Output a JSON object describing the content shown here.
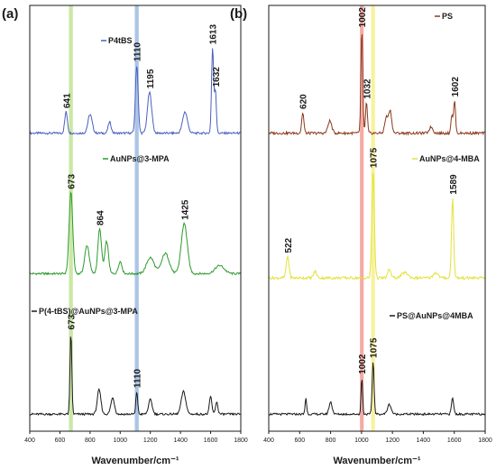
{
  "chart_data": [
    {
      "type": "line",
      "panel_label": "(a)",
      "xlabel": "Wavenumber/cm⁻¹",
      "xlim": [
        400,
        1800
      ],
      "xticks": [
        400,
        600,
        800,
        1000,
        1200,
        1400,
        1600,
        1800
      ],
      "highlight_bands": [
        {
          "center": 673,
          "width": 26,
          "color": "#b9df8a"
        },
        {
          "center": 1110,
          "width": 26,
          "color": "#8fb1de"
        }
      ],
      "series": [
        {
          "name": "P4tBS",
          "color": "#4a5fc1",
          "baseline": 0.7,
          "scale": 0.2,
          "peaks": [
            {
              "x": 641,
              "h": 0.25,
              "w": 9,
              "label": "641"
            },
            {
              "x": 800,
              "h": 0.22,
              "w": 14
            },
            {
              "x": 930,
              "h": 0.13,
              "w": 10
            },
            {
              "x": 1110,
              "h": 0.8,
              "w": 9,
              "label": "1110"
            },
            {
              "x": 1195,
              "h": 0.48,
              "w": 14,
              "label": "1195"
            },
            {
              "x": 1430,
              "h": 0.25,
              "w": 16
            },
            {
              "x": 1613,
              "h": 1.0,
              "w": 7,
              "label": "1613"
            },
            {
              "x": 1632,
              "h": 0.5,
              "w": 6,
              "label": "1632"
            }
          ]
        },
        {
          "name": "AuNPs@3-MPA",
          "color": "#2f9a2f",
          "baseline": 0.37,
          "scale": 0.19,
          "peaks": [
            {
              "x": 673,
              "h": 1.0,
              "w": 12,
              "label": "673"
            },
            {
              "x": 780,
              "h": 0.35,
              "w": 15
            },
            {
              "x": 864,
              "h": 0.55,
              "w": 12,
              "label": "864"
            },
            {
              "x": 910,
              "h": 0.4,
              "w": 12
            },
            {
              "x": 1000,
              "h": 0.15,
              "w": 12
            },
            {
              "x": 1200,
              "h": 0.2,
              "w": 25
            },
            {
              "x": 1300,
              "h": 0.25,
              "w": 25
            },
            {
              "x": 1425,
              "h": 0.62,
              "w": 20,
              "label": "1425"
            },
            {
              "x": 1660,
              "h": 0.1,
              "w": 30
            }
          ]
        },
        {
          "name": "P(4-tBS)@AuNPs@3-MPA",
          "color": "#1a1a1a",
          "baseline": 0.04,
          "scale": 0.19,
          "peaks": [
            {
              "x": 673,
              "h": 1.0,
              "w": 6,
              "label": "673"
            },
            {
              "x": 860,
              "h": 0.3,
              "w": 12
            },
            {
              "x": 950,
              "h": 0.2,
              "w": 12
            },
            {
              "x": 1110,
              "h": 0.28,
              "w": 6,
              "label": "1110"
            },
            {
              "x": 1200,
              "h": 0.18,
              "w": 12
            },
            {
              "x": 1420,
              "h": 0.28,
              "w": 15
            },
            {
              "x": 1600,
              "h": 0.22,
              "w": 8
            },
            {
              "x": 1640,
              "h": 0.15,
              "w": 8
            }
          ]
        }
      ]
    },
    {
      "type": "line",
      "panel_label": "(b)",
      "xlabel": "Wavenumber/cm⁻¹",
      "xlim": [
        400,
        1800
      ],
      "xticks": [
        400,
        600,
        800,
        1000,
        1200,
        1400,
        1600,
        1800
      ],
      "highlight_bands": [
        {
          "center": 1002,
          "width": 24,
          "color": "#f08f86"
        },
        {
          "center": 1075,
          "width": 24,
          "color": "#f6ee7a"
        }
      ],
      "series": [
        {
          "name": "PS",
          "color": "#8b3a1e",
          "baseline": 0.7,
          "scale": 0.24,
          "peaks": [
            {
              "x": 620,
              "h": 0.2,
              "w": 7,
              "label": "620"
            },
            {
              "x": 795,
              "h": 0.12,
              "w": 12
            },
            {
              "x": 1002,
              "h": 1.0,
              "w": 6,
              "label": "1002"
            },
            {
              "x": 1032,
              "h": 0.3,
              "w": 6,
              "label": "1032"
            },
            {
              "x": 1160,
              "h": 0.15,
              "w": 10
            },
            {
              "x": 1185,
              "h": 0.22,
              "w": 10
            },
            {
              "x": 1450,
              "h": 0.06,
              "w": 12
            },
            {
              "x": 1584,
              "h": 0.18,
              "w": 6
            },
            {
              "x": 1602,
              "h": 0.32,
              "w": 6,
              "label": "1602"
            }
          ]
        },
        {
          "name": "AuNPs@4-MBA",
          "color": "#e2e23a",
          "baseline": 0.36,
          "scale": 0.25,
          "peaks": [
            {
              "x": 522,
              "h": 0.2,
              "w": 9,
              "label": "522"
            },
            {
              "x": 700,
              "h": 0.06,
              "w": 10
            },
            {
              "x": 1075,
              "h": 1.0,
              "w": 8,
              "label": "1075"
            },
            {
              "x": 1180,
              "h": 0.08,
              "w": 10
            },
            {
              "x": 1280,
              "h": 0.05,
              "w": 20
            },
            {
              "x": 1480,
              "h": 0.05,
              "w": 15
            },
            {
              "x": 1589,
              "h": 0.75,
              "w": 7,
              "label": "1589"
            }
          ]
        },
        {
          "name": "PS@AuNPs@4MBA",
          "color": "#1a1a1a",
          "baseline": 0.04,
          "scale": 0.19,
          "peaks": [
            {
              "x": 640,
              "h": 0.2,
              "w": 5
            },
            {
              "x": 800,
              "h": 0.15,
              "w": 10
            },
            {
              "x": 1002,
              "h": 0.45,
              "w": 5,
              "label": "1002"
            },
            {
              "x": 1075,
              "h": 0.65,
              "w": 6,
              "label": "1075"
            },
            {
              "x": 1180,
              "h": 0.12,
              "w": 12
            },
            {
              "x": 1589,
              "h": 0.2,
              "w": 7
            }
          ]
        }
      ]
    }
  ]
}
